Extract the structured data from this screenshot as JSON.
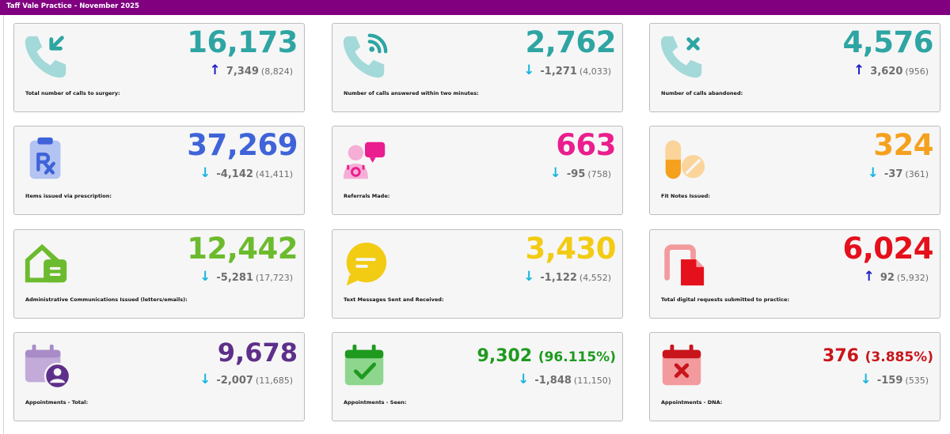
{
  "header": {
    "title": "Taff Vale Practice - November 2025"
  },
  "cards": [
    {
      "label": "Total number of calls to surgery:",
      "value": "16,173",
      "change": "7,349",
      "previous": "(8,824)",
      "direction": "up",
      "color": "#2ea5a3",
      "icon": "phone-incoming-icon"
    },
    {
      "label": "Number of calls answered within two minutes:",
      "value": "2,762",
      "change": "-1,271",
      "previous": "(4,033)",
      "direction": "down",
      "color": "#2ea5a3",
      "icon": "phone-ringing-icon"
    },
    {
      "label": "Number of calls abandoned:",
      "value": "4,576",
      "change": "3,620",
      "previous": "(956)",
      "direction": "up",
      "color": "#2ea5a3",
      "icon": "phone-missed-icon"
    },
    {
      "label": "Items issued via prescription:",
      "value": "37,269",
      "change": "-4,142",
      "previous": "(41,411)",
      "direction": "down",
      "color": "#3f63d8",
      "icon": "prescription-clipboard-icon"
    },
    {
      "label": "Referrals Made:",
      "value": "663",
      "change": "-95",
      "previous": "(758)",
      "direction": "down",
      "color": "#ea1e8e",
      "icon": "referral-chat-icon"
    },
    {
      "label": "Fit Notes Issued:",
      "value": "324",
      "change": "-37",
      "previous": "(361)",
      "direction": "down",
      "color": "#f5a11e",
      "icon": "pills-icon"
    },
    {
      "label": "Administrative Communications Issued (letters/emails):",
      "value": "12,442",
      "change": "-5,281",
      "previous": "(17,723)",
      "direction": "down",
      "color": "#6cbb2e",
      "icon": "mailbox-house-icon"
    },
    {
      "label": "Text Messages Sent and Received:",
      "value": "3,430",
      "change": "-1,122",
      "previous": "(4,552)",
      "direction": "down",
      "color": "#f2cb13",
      "icon": "chat-bubble-icon"
    },
    {
      "label": "Total digital requests submitted to practice:",
      "value": "6,024",
      "change": "92",
      "previous": "(5,932)",
      "direction": "up",
      "color": "#e4101b",
      "icon": "document-transfer-icon"
    },
    {
      "label": "Appointments - Total:",
      "value": "9,678",
      "change": "-2,007",
      "previous": "(11,685)",
      "direction": "down",
      "color": "#5e2f8a",
      "icon": "calendar-user-icon"
    },
    {
      "label": "Appointments - Seen:",
      "value": "9,302",
      "percent": "(96.115%)",
      "change": "-1,848",
      "previous": "(11,150)",
      "direction": "down",
      "color": "#1f9a1f",
      "icon": "calendar-check-icon"
    },
    {
      "label": "Appointments - DNA:",
      "value": "376",
      "percent": "(3.885%)",
      "change": "-159",
      "previous": "(535)",
      "direction": "down",
      "color": "#c8151b",
      "icon": "calendar-cross-icon"
    }
  ]
}
